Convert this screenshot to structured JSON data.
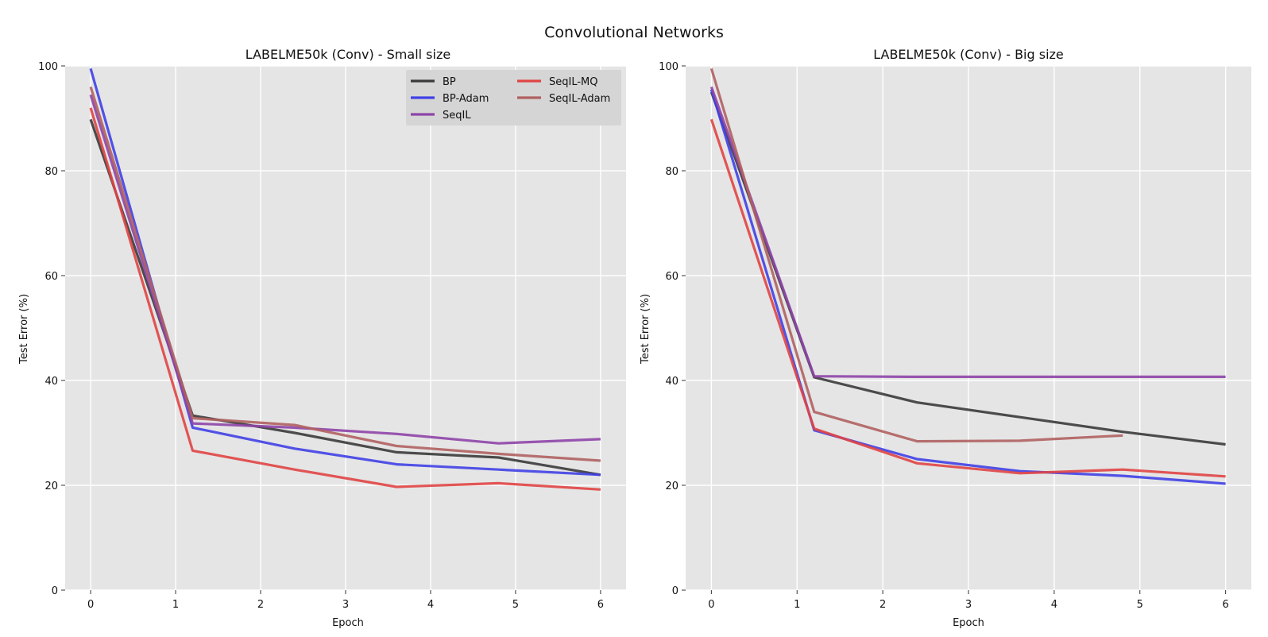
{
  "figure": {
    "suptitle": "Convolutional Networks"
  },
  "colors": {
    "axes_bg": "#e5e5e5",
    "grid": "#ffffff",
    "legend_bg": "#d5d5d5"
  },
  "chart_data": [
    {
      "type": "line",
      "title": "LABELME50k (Conv) - Small size",
      "xlabel": "Epoch",
      "ylabel": "Test Error (%)",
      "xlim": [
        -0.3,
        6.3
      ],
      "ylim": [
        0,
        100
      ],
      "xticks": [
        0,
        1,
        2,
        3,
        4,
        5,
        6
      ],
      "yticks": [
        0,
        20,
        40,
        60,
        80,
        100
      ],
      "grid": true,
      "legend": "top-right",
      "series": [
        {
          "name": "BP",
          "color": "#3a3a3a",
          "x": [
            0,
            1.2,
            2.4,
            3.6,
            4.8,
            6
          ],
          "y": [
            89.8,
            33.3,
            30.0,
            26.3,
            25.3,
            22.0
          ]
        },
        {
          "name": "BP-Adam",
          "color": "#4040e6",
          "x": [
            0,
            1.2,
            2.4,
            3.6,
            4.8,
            6
          ],
          "y": [
            99.5,
            31.0,
            27.0,
            24.0,
            23.0,
            22.0
          ]
        },
        {
          "name": "SeqIL",
          "color": "#8e44a8",
          "x": [
            0,
            1.2,
            2.4,
            3.6,
            4.8,
            6
          ],
          "y": [
            94.5,
            31.8,
            31.0,
            29.8,
            28.0,
            28.8
          ]
        },
        {
          "name": "SeqIL-MQ",
          "color": "#e04444",
          "x": [
            0,
            1.2,
            2.4,
            3.6,
            4.8,
            6
          ],
          "y": [
            92.0,
            26.6,
            23.0,
            19.7,
            20.4,
            19.2
          ]
        },
        {
          "name": "SeqIL-Adam",
          "color": "#b06060",
          "x": [
            0,
            1.2,
            2.4,
            3.6,
            4.8,
            6
          ],
          "y": [
            96.0,
            32.8,
            31.5,
            27.5,
            26.0,
            24.7
          ]
        }
      ]
    },
    {
      "type": "line",
      "title": "LABELME50k (Conv) - Big size",
      "xlabel": "Epoch",
      "ylabel": "Test Error (%)",
      "xlim": [
        -0.3,
        6.3
      ],
      "ylim": [
        0,
        100
      ],
      "xticks": [
        0,
        1,
        2,
        3,
        4,
        5,
        6
      ],
      "yticks": [
        0,
        20,
        40,
        60,
        80,
        100
      ],
      "grid": true,
      "legend": "none",
      "series": [
        {
          "name": "BP",
          "color": "#3a3a3a",
          "x": [
            0,
            1.2,
            2.4,
            3.6,
            4.8,
            6
          ],
          "y": [
            95.0,
            40.6,
            35.8,
            33.0,
            30.2,
            27.8
          ]
        },
        {
          "name": "BP-Adam",
          "color": "#4040e6",
          "x": [
            0,
            1.2,
            2.4,
            3.6,
            4.8,
            6
          ],
          "y": [
            95.5,
            30.5,
            25.0,
            22.7,
            21.8,
            20.3
          ]
        },
        {
          "name": "SeqIL",
          "color": "#8e44a8",
          "x": [
            0,
            1.2,
            2.4,
            3.6,
            4.8,
            6
          ],
          "y": [
            96.0,
            40.8,
            40.7,
            40.7,
            40.7,
            40.7
          ]
        },
        {
          "name": "SeqIL-MQ",
          "color": "#e04444",
          "x": [
            0,
            1.2,
            2.4,
            3.6,
            4.8,
            6
          ],
          "y": [
            89.8,
            30.8,
            24.2,
            22.3,
            23.0,
            21.7
          ]
        },
        {
          "name": "SeqIL-Adam",
          "color": "#b06060",
          "x": [
            0,
            1.2,
            2.4,
            3.6,
            4.8,
            6
          ],
          "y": [
            99.5,
            34.0,
            28.4,
            28.5,
            29.5,
            null
          ]
        }
      ]
    }
  ]
}
